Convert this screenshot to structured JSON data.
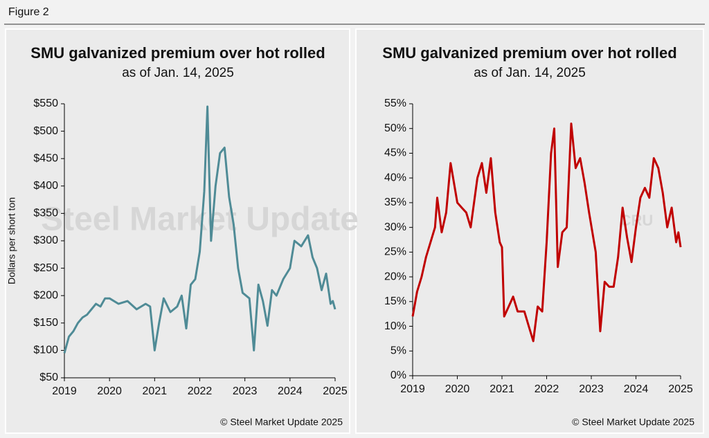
{
  "figure_label": "Figure 2",
  "chart_data": [
    {
      "type": "line",
      "title": "SMU galvanized premium over hot rolled",
      "subtitle": "as of Jan. 14, 2025",
      "y_label": "Dollars per short ton",
      "source": "© Steel Market Update 2025",
      "watermark": "Steel Market Update",
      "color": "#4f8b96",
      "x": [
        2019,
        2019.1,
        2019.2,
        2019.3,
        2019.4,
        2019.5,
        2019.6,
        2019.7,
        2019.8,
        2019.9,
        2020,
        2020.2,
        2020.4,
        2020.6,
        2020.8,
        2020.9,
        2021,
        2021.1,
        2021.2,
        2021.35,
        2021.5,
        2021.6,
        2021.7,
        2021.8,
        2021.9,
        2022,
        2022.1,
        2022.17,
        2022.25,
        2022.35,
        2022.45,
        2022.55,
        2022.65,
        2022.75,
        2022.85,
        2022.95,
        2023.1,
        2023.2,
        2023.3,
        2023.4,
        2023.5,
        2023.6,
        2023.7,
        2023.85,
        2024,
        2024.1,
        2024.25,
        2024.4,
        2024.5,
        2024.6,
        2024.7,
        2024.8,
        2024.9,
        2024.95,
        2025
      ],
      "values": [
        95,
        125,
        135,
        150,
        160,
        165,
        175,
        185,
        180,
        195,
        195,
        185,
        190,
        175,
        185,
        180,
        100,
        150,
        195,
        170,
        180,
        200,
        140,
        220,
        230,
        280,
        390,
        545,
        300,
        400,
        460,
        470,
        380,
        330,
        250,
        205,
        195,
        100,
        220,
        190,
        145,
        210,
        200,
        230,
        250,
        300,
        290,
        310,
        270,
        250,
        210,
        240,
        185,
        190,
        175
      ],
      "xlim": [
        2019,
        2025
      ],
      "xticks": [
        2019,
        2020,
        2021,
        2022,
        2023,
        2024,
        2025
      ],
      "ylim": [
        50,
        550
      ],
      "yticks": [
        {
          "value": 50,
          "label": "$50"
        },
        {
          "value": 100,
          "label": "$100"
        },
        {
          "value": 150,
          "label": "$150"
        },
        {
          "value": 200,
          "label": "$200"
        },
        {
          "value": 250,
          "label": "$250"
        },
        {
          "value": 300,
          "label": "$300"
        },
        {
          "value": 350,
          "label": "$350"
        },
        {
          "value": 400,
          "label": "$400"
        },
        {
          "value": 450,
          "label": "$450"
        },
        {
          "value": 500,
          "label": "$500"
        },
        {
          "value": 550,
          "label": "$550"
        }
      ]
    },
    {
      "type": "line",
      "title": "SMU galvanized premium over hot rolled",
      "subtitle": "as of Jan. 14, 2025",
      "source": "© Steel Market Update 2025",
      "watermark": "CRU",
      "color": "#c00000",
      "x": [
        2019,
        2019.1,
        2019.2,
        2019.3,
        2019.4,
        2019.5,
        2019.55,
        2019.65,
        2019.75,
        2019.85,
        2020,
        2020.1,
        2020.2,
        2020.3,
        2020.45,
        2020.55,
        2020.65,
        2020.75,
        2020.85,
        2020.95,
        2021,
        2021.05,
        2021.15,
        2021.25,
        2021.35,
        2021.5,
        2021.6,
        2021.7,
        2021.8,
        2021.9,
        2022,
        2022.1,
        2022.17,
        2022.25,
        2022.35,
        2022.45,
        2022.55,
        2022.65,
        2022.75,
        2022.85,
        2022.95,
        2023.1,
        2023.2,
        2023.3,
        2023.4,
        2023.5,
        2023.6,
        2023.7,
        2023.8,
        2023.9,
        2024,
        2024.1,
        2024.2,
        2024.3,
        2024.4,
        2024.5,
        2024.6,
        2024.7,
        2024.8,
        2024.9,
        2024.95,
        2025
      ],
      "values": [
        12,
        17,
        20,
        24,
        27,
        30,
        36,
        29,
        33,
        43,
        35,
        34,
        33,
        30,
        40,
        43,
        37,
        44,
        33,
        27,
        26,
        12,
        14,
        16,
        13,
        13,
        10,
        7,
        14,
        13,
        27,
        45,
        50,
        22,
        29,
        30,
        51,
        42,
        44,
        39,
        33,
        25,
        9,
        19,
        18,
        18,
        24,
        34,
        28,
        23,
        30,
        36,
        38,
        36,
        44,
        42,
        37,
        30,
        34,
        27,
        29,
        26
      ],
      "xlim": [
        2019,
        2025
      ],
      "xticks": [
        2019,
        2020,
        2021,
        2022,
        2023,
        2024,
        2025
      ],
      "ylim": [
        0,
        55
      ],
      "yticks": [
        {
          "value": 0,
          "label": "0%"
        },
        {
          "value": 5,
          "label": "5%"
        },
        {
          "value": 10,
          "label": "10%"
        },
        {
          "value": 15,
          "label": "15%"
        },
        {
          "value": 20,
          "label": "20%"
        },
        {
          "value": 25,
          "label": "25%"
        },
        {
          "value": 30,
          "label": "30%"
        },
        {
          "value": 35,
          "label": "35%"
        },
        {
          "value": 40,
          "label": "40%"
        },
        {
          "value": 45,
          "label": "45%"
        },
        {
          "value": 50,
          "label": "50%"
        },
        {
          "value": 55,
          "label": "55%"
        }
      ]
    }
  ]
}
